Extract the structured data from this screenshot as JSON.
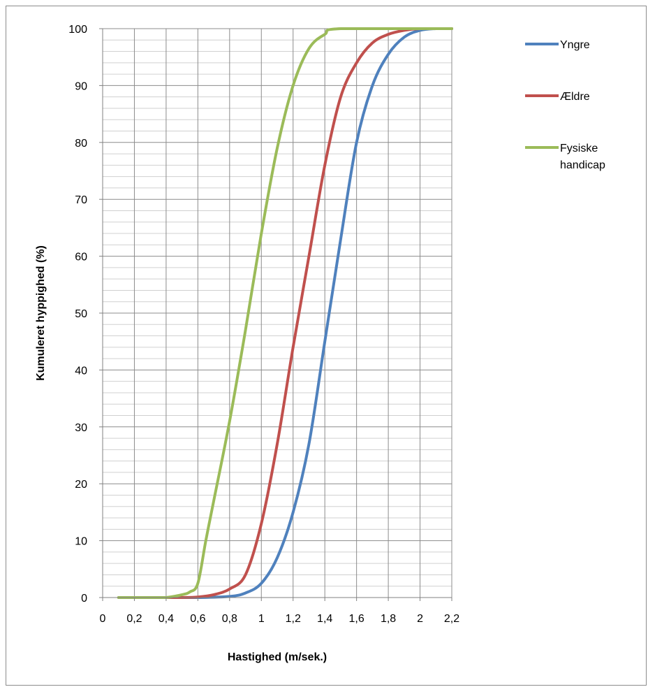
{
  "chart_data": {
    "type": "line",
    "title": "",
    "xlabel": "Hastighed (m/sek.)",
    "ylabel": "Kumuleret hyppighed (%)",
    "xlim": [
      0,
      2.2
    ],
    "ylim": [
      0,
      100
    ],
    "x_ticks": [
      0,
      0.2,
      0.4,
      0.6,
      0.8,
      1.0,
      1.2,
      1.4,
      1.6,
      1.8,
      2.0,
      2.2
    ],
    "x_tick_labels": [
      "0",
      "0,2",
      "0,4",
      "0,6",
      "0,8",
      "1",
      "1,2",
      "1,4",
      "1,6",
      "1,8",
      "2",
      "2,2"
    ],
    "y_ticks": [
      0,
      10,
      20,
      30,
      40,
      50,
      60,
      70,
      80,
      90,
      100
    ],
    "y_tick_labels": [
      "0",
      "10",
      "20",
      "30",
      "40",
      "50",
      "60",
      "70",
      "80",
      "90",
      "100"
    ],
    "grid": true,
    "minor_grid": true,
    "legend_position": "top-right",
    "series": [
      {
        "name": "Yngre",
        "color": "#4f81bd",
        "points": [
          [
            0.4,
            0
          ],
          [
            0.6,
            0
          ],
          [
            0.8,
            0.2
          ],
          [
            0.9,
            0.8
          ],
          [
            1.0,
            2.5
          ],
          [
            1.1,
            7
          ],
          [
            1.2,
            15
          ],
          [
            1.3,
            27
          ],
          [
            1.4,
            45
          ],
          [
            1.5,
            63
          ],
          [
            1.6,
            80
          ],
          [
            1.7,
            90
          ],
          [
            1.8,
            95.5
          ],
          [
            1.9,
            98.5
          ],
          [
            2.0,
            99.7
          ],
          [
            2.1,
            100
          ],
          [
            2.2,
            100
          ]
        ]
      },
      {
        "name": "Ældre",
        "color": "#c0504d",
        "points": [
          [
            0.4,
            0
          ],
          [
            0.5,
            0
          ],
          [
            0.6,
            0.1
          ],
          [
            0.7,
            0.5
          ],
          [
            0.8,
            1.5
          ],
          [
            0.9,
            4
          ],
          [
            1.0,
            13
          ],
          [
            1.1,
            27
          ],
          [
            1.2,
            44
          ],
          [
            1.3,
            60
          ],
          [
            1.4,
            76
          ],
          [
            1.5,
            88
          ],
          [
            1.6,
            94
          ],
          [
            1.7,
            97.5
          ],
          [
            1.8,
            99
          ],
          [
            1.9,
            99.7
          ],
          [
            2.0,
            100
          ],
          [
            2.2,
            100
          ]
        ]
      },
      {
        "name": "Fysiske handicap",
        "color": "#9bbb59",
        "points": [
          [
            0.1,
            0
          ],
          [
            0.3,
            0
          ],
          [
            0.4,
            0
          ],
          [
            0.5,
            0.5
          ],
          [
            0.55,
            1
          ],
          [
            0.6,
            2.5
          ],
          [
            0.65,
            10
          ],
          [
            0.7,
            17
          ],
          [
            0.8,
            31
          ],
          [
            0.9,
            47
          ],
          [
            1.0,
            64
          ],
          [
            1.1,
            79
          ],
          [
            1.2,
            90
          ],
          [
            1.3,
            96.5
          ],
          [
            1.4,
            99
          ],
          [
            1.5,
            100
          ],
          [
            2.2,
            100
          ]
        ]
      }
    ]
  }
}
